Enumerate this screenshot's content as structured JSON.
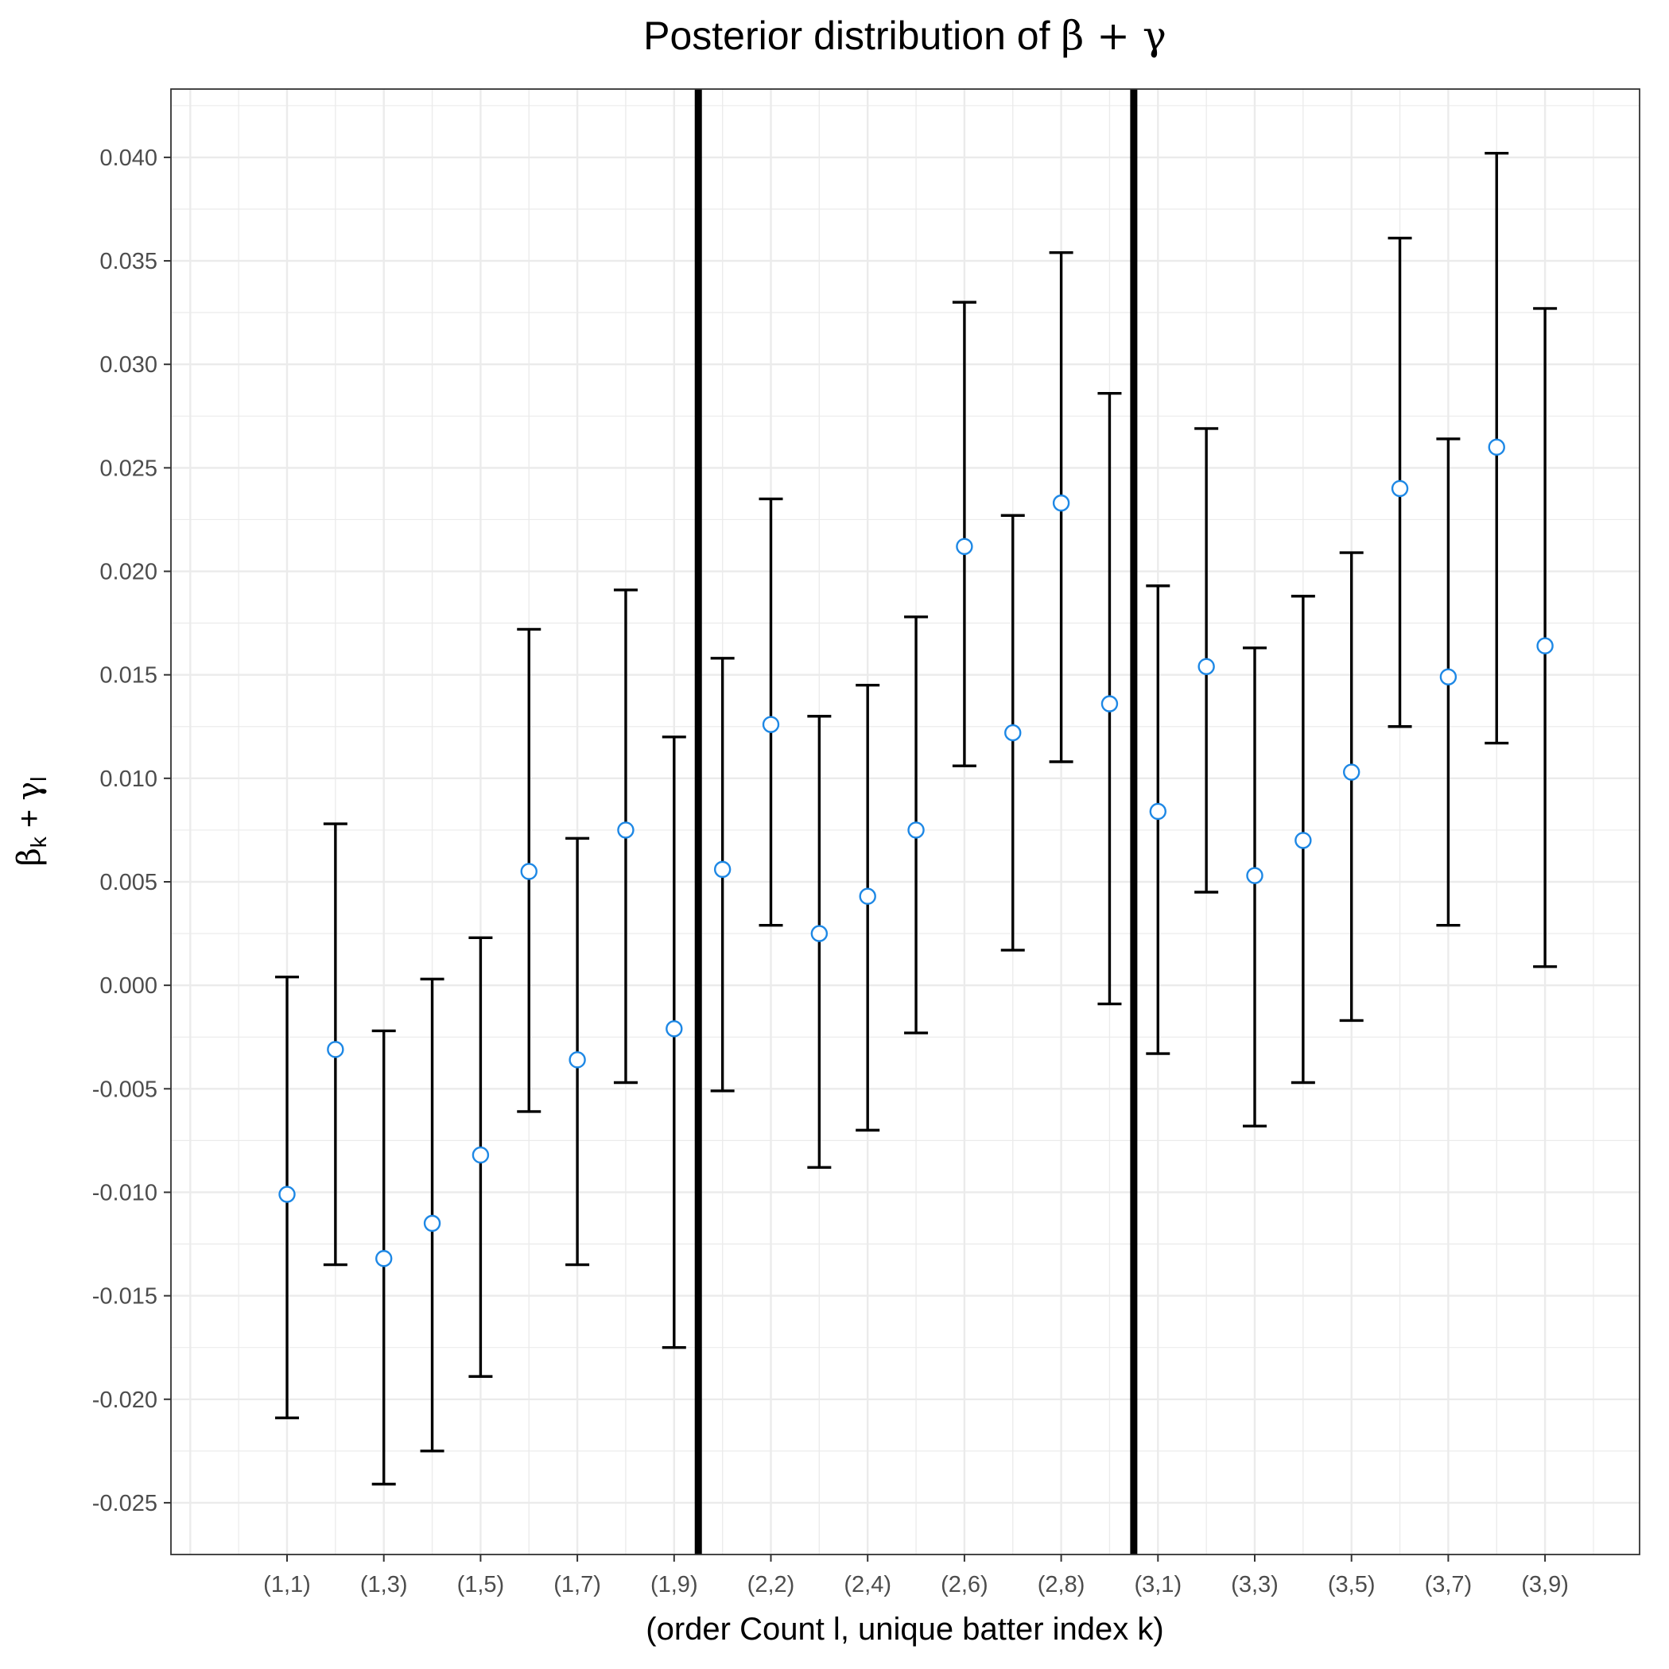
{
  "chart_data": {
    "type": "scatter",
    "title_prefix": "Posterior distribution of ",
    "title_math": "β + γ",
    "xlabel": "(order Count l, unique batter index k)",
    "ylabel_beta": "β",
    "ylabel_beta_sub": "k",
    "ylabel_plus": " + ",
    "ylabel_gamma": "γ",
    "ylabel_gamma_sub": "l",
    "ylim": [
      -0.0275,
      0.0433
    ],
    "yticks": [
      -0.025,
      -0.02,
      -0.015,
      -0.01,
      -0.005,
      0.0,
      0.005,
      0.01,
      0.015,
      0.02,
      0.025,
      0.03,
      0.035,
      0.04
    ],
    "ytick_labels": [
      "-0.025",
      "-0.020",
      "-0.015",
      "-0.010",
      "-0.005",
      "0.000",
      "0.005",
      "0.010",
      "0.015",
      "0.020",
      "0.025",
      "0.030",
      "0.035",
      "0.040"
    ],
    "grid": true,
    "point_color": "#1E88E5",
    "errorbar_color": "#000000",
    "separator_after_index": [
      9,
      18
    ],
    "categories": [
      "(1,1)",
      "(1,2)",
      "(1,3)",
      "(1,4)",
      "(1,5)",
      "(1,6)",
      "(1,7)",
      "(1,8)",
      "(1,9)",
      "(2,1)",
      "(2,2)",
      "(2,3)",
      "(2,4)",
      "(2,5)",
      "(2,6)",
      "(2,7)",
      "(2,8)",
      "(2,9)",
      "(3,1)",
      "(3,2)",
      "(3,3)",
      "(3,4)",
      "(3,5)",
      "(3,6)",
      "(3,7)",
      "(3,8)",
      "(3,9)"
    ],
    "shown_tick_labels": [
      "(1,1)",
      "",
      "(1,3)",
      "",
      "(1,5)",
      "",
      "(1,7)",
      "",
      "(1,9)",
      "",
      "(2,2)",
      "",
      "(2,4)",
      "",
      "(2,6)",
      "",
      "(2,8)",
      "",
      "(3,1)",
      "",
      "(3,3)",
      "",
      "(3,5)",
      "",
      "(3,7)",
      "",
      "(3,9)"
    ],
    "series": [
      {
        "estimate": [
          -0.0101,
          -0.0031,
          -0.0132,
          -0.0115,
          -0.0082,
          0.0055,
          -0.0036,
          0.0075,
          -0.0021,
          0.0056,
          0.0126,
          0.0025,
          0.0043,
          0.0075,
          0.0212,
          0.0122,
          0.0233,
          0.0136,
          0.0084,
          0.0154,
          0.0053,
          0.007,
          0.0103,
          0.024,
          0.0149,
          0.026,
          0.0164
        ],
        "lower": [
          -0.0209,
          -0.0135,
          -0.0241,
          -0.0225,
          -0.0189,
          -0.0061,
          -0.0135,
          -0.0047,
          -0.0175,
          -0.0051,
          0.0029,
          -0.0088,
          -0.007,
          -0.0023,
          0.0106,
          0.0017,
          0.0108,
          -0.0009,
          -0.0033,
          0.0045,
          -0.0068,
          -0.0047,
          -0.0017,
          0.0125,
          0.0029,
          0.0117,
          0.0009
        ],
        "upper": [
          0.0004,
          0.0078,
          -0.0022,
          0.0003,
          0.0023,
          0.0172,
          0.0071,
          0.0191,
          0.012,
          0.0158,
          0.0235,
          0.013,
          0.0145,
          0.0178,
          0.033,
          0.0227,
          0.0354,
          0.0286,
          0.0193,
          0.0269,
          0.0163,
          0.0188,
          0.0209,
          0.0361,
          0.0264,
          0.0402,
          0.0327
        ]
      }
    ]
  }
}
